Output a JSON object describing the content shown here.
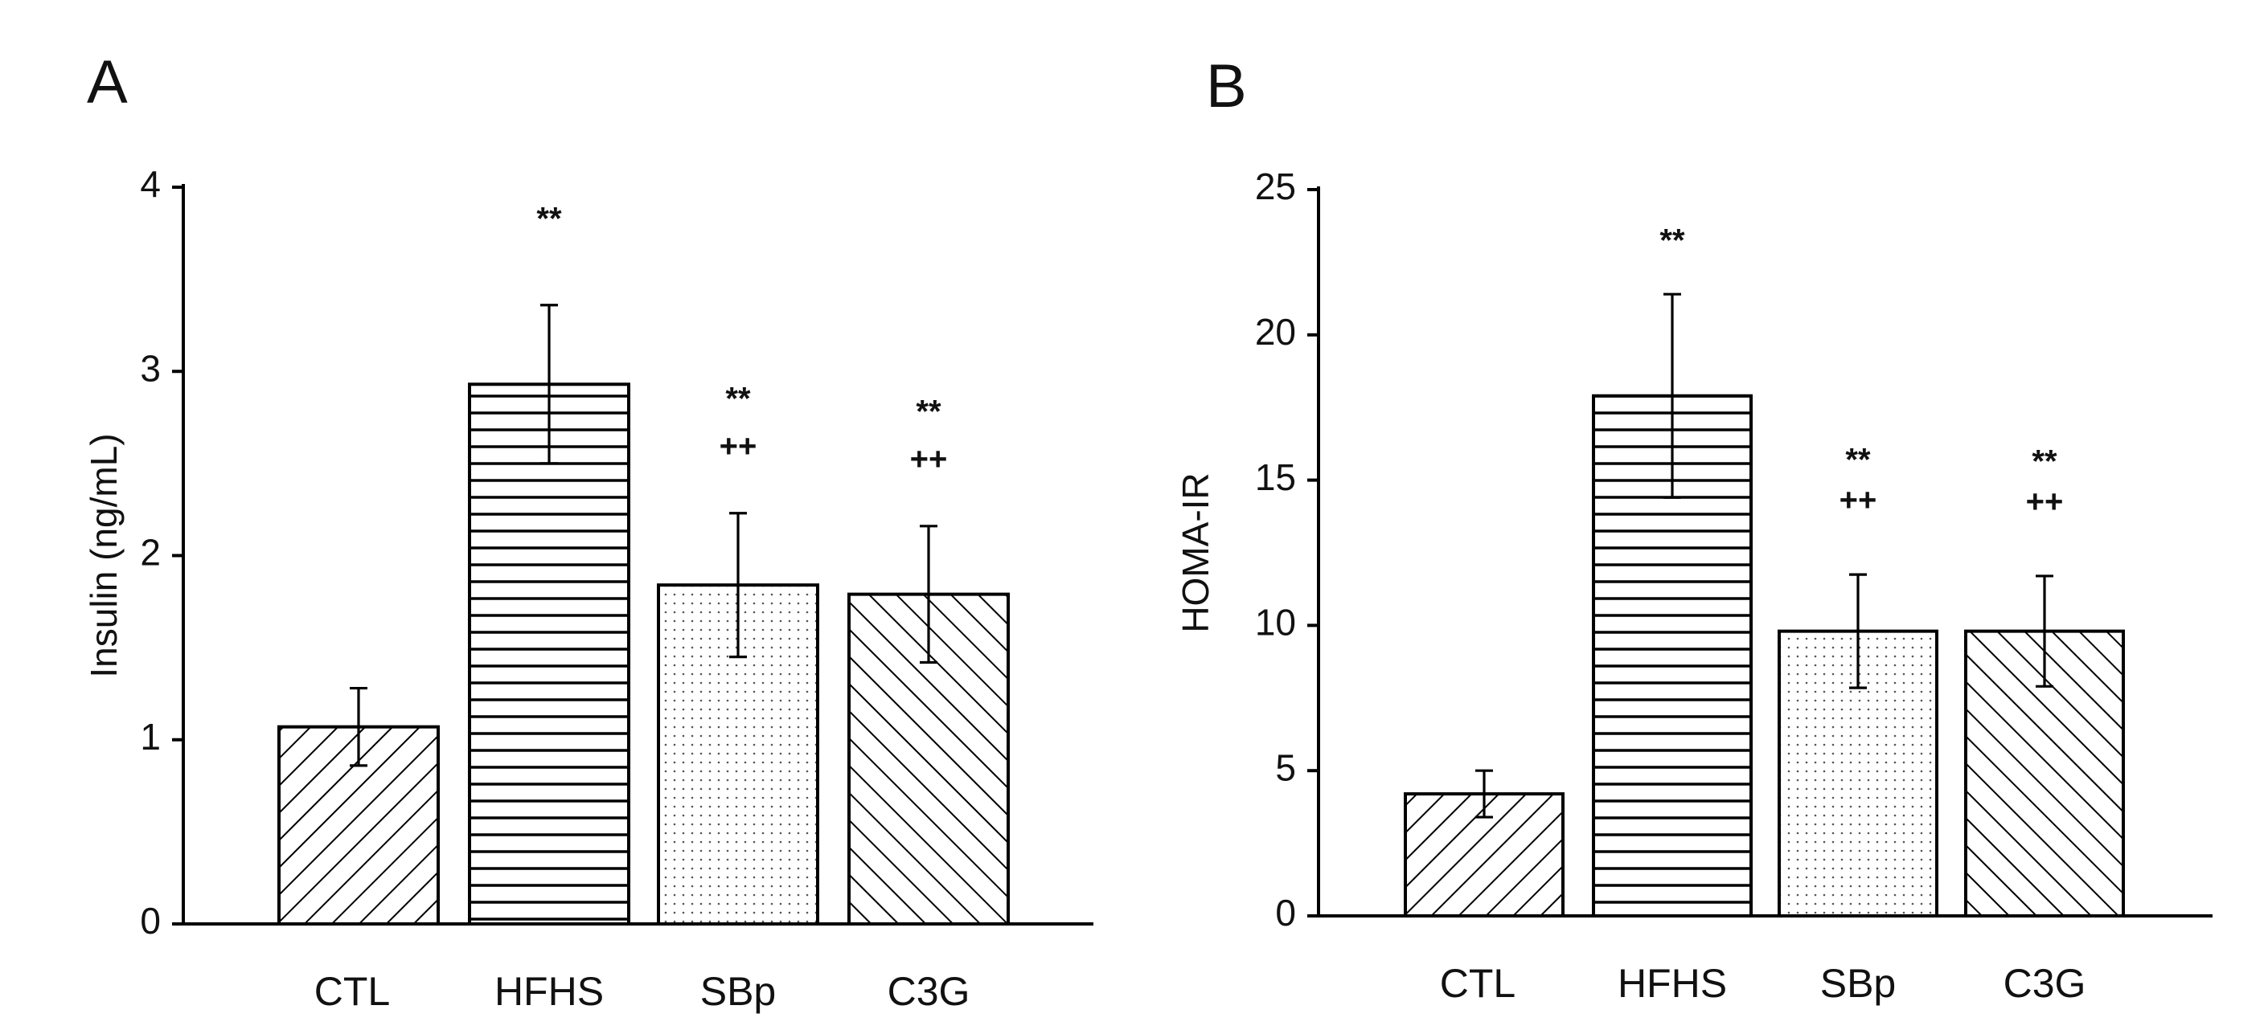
{
  "chart_data": [
    {
      "panel": "A",
      "type": "bar",
      "title": "",
      "xlabel": "",
      "ylabel": "Insulin (ng/mL)",
      "ylim": [
        0,
        4
      ],
      "yticks": [
        0,
        1,
        2,
        3,
        4
      ],
      "categories": [
        "CTL",
        "HFHS",
        "SBp",
        "C3G"
      ],
      "values": [
        1.07,
        2.93,
        1.84,
        1.79
      ],
      "errors": [
        0.21,
        0.43,
        0.39,
        0.37
      ],
      "patterns": [
        "diag-up",
        "horizontal",
        "dots",
        "diag-down"
      ],
      "annotations": [
        [],
        [
          "**"
        ],
        [
          "**",
          "++"
        ],
        [
          "**",
          "++"
        ]
      ]
    },
    {
      "panel": "B",
      "type": "bar",
      "title": "",
      "xlabel": "",
      "ylabel": "HOMA-IR",
      "ylim": [
        0,
        25
      ],
      "yticks": [
        0,
        5,
        10,
        15,
        20,
        25
      ],
      "categories": [
        "CTL",
        "HFHS",
        "SBp",
        "C3G"
      ],
      "values": [
        4.2,
        17.9,
        9.8,
        9.8
      ],
      "errors": [
        0.8,
        3.5,
        1.95,
        1.9
      ],
      "patterns": [
        "diag-up",
        "horizontal",
        "dots",
        "diag-down"
      ],
      "annotations": [
        [],
        [
          "**"
        ],
        [
          "**",
          "++"
        ],
        [
          "**",
          "++"
        ]
      ]
    }
  ]
}
